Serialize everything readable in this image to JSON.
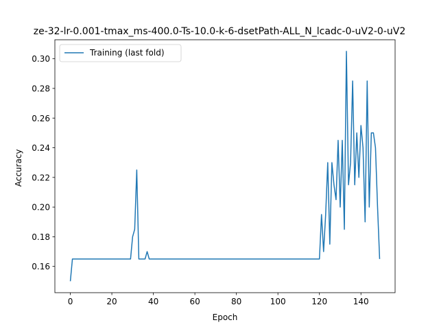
{
  "chart_data": {
    "type": "line",
    "title": "ze-32-lr-0.001-tmax_ms-400.0-Ts-10.0-k-6-dsetPath-ALL_N_lcadc-0-uV2-0-uV2",
    "xlabel": "Epoch",
    "ylabel": "Accuracy",
    "xlim": [
      -7.45,
      156.45
    ],
    "ylim": [
      0.1423,
      0.3128
    ],
    "xticks": [
      0,
      20,
      40,
      60,
      80,
      100,
      120,
      140
    ],
    "yticks": [
      0.16,
      0.18,
      0.2,
      0.22,
      0.24,
      0.26,
      0.28,
      0.3
    ],
    "ytick_labels": [
      "0.16",
      "0.18",
      "0.20",
      "0.22",
      "0.24",
      "0.26",
      "0.28",
      "0.30"
    ],
    "grid": false,
    "legend": {
      "position": "upper-left"
    },
    "series": [
      {
        "name": "Training (last fold)",
        "color": "#1f77b4",
        "x": [
          0,
          1,
          2,
          3,
          4,
          5,
          6,
          7,
          8,
          9,
          10,
          11,
          12,
          13,
          14,
          15,
          16,
          17,
          18,
          19,
          20,
          21,
          22,
          23,
          24,
          25,
          26,
          27,
          28,
          29,
          30,
          31,
          32,
          33,
          34,
          35,
          36,
          37,
          38,
          39,
          40,
          41,
          42,
          43,
          44,
          45,
          46,
          47,
          48,
          49,
          50,
          51,
          52,
          53,
          54,
          55,
          56,
          57,
          58,
          59,
          60,
          61,
          62,
          63,
          64,
          65,
          66,
          67,
          68,
          69,
          70,
          71,
          72,
          73,
          74,
          75,
          76,
          77,
          78,
          79,
          80,
          81,
          82,
          83,
          84,
          85,
          86,
          87,
          88,
          89,
          90,
          91,
          92,
          93,
          94,
          95,
          96,
          97,
          98,
          99,
          100,
          101,
          102,
          103,
          104,
          105,
          106,
          107,
          108,
          109,
          110,
          111,
          112,
          113,
          114,
          115,
          116,
          117,
          118,
          119,
          120,
          121,
          122,
          123,
          124,
          125,
          126,
          127,
          128,
          129,
          130,
          131,
          132,
          133,
          134,
          135,
          136,
          137,
          138,
          139,
          140,
          141,
          142,
          143,
          144,
          145,
          146,
          147,
          148,
          149
        ],
        "values": [
          0.15,
          0.165,
          0.165,
          0.165,
          0.165,
          0.165,
          0.165,
          0.165,
          0.165,
          0.165,
          0.165,
          0.165,
          0.165,
          0.165,
          0.165,
          0.165,
          0.165,
          0.165,
          0.165,
          0.165,
          0.165,
          0.165,
          0.165,
          0.165,
          0.165,
          0.165,
          0.165,
          0.165,
          0.165,
          0.165,
          0.18,
          0.185,
          0.225,
          0.165,
          0.165,
          0.165,
          0.165,
          0.17,
          0.165,
          0.165,
          0.165,
          0.165,
          0.165,
          0.165,
          0.165,
          0.165,
          0.165,
          0.165,
          0.165,
          0.165,
          0.165,
          0.165,
          0.165,
          0.165,
          0.165,
          0.165,
          0.165,
          0.165,
          0.165,
          0.165,
          0.165,
          0.165,
          0.165,
          0.165,
          0.165,
          0.165,
          0.165,
          0.165,
          0.165,
          0.165,
          0.165,
          0.165,
          0.165,
          0.165,
          0.165,
          0.165,
          0.165,
          0.165,
          0.165,
          0.165,
          0.165,
          0.165,
          0.165,
          0.165,
          0.165,
          0.165,
          0.165,
          0.165,
          0.165,
          0.165,
          0.165,
          0.165,
          0.165,
          0.165,
          0.165,
          0.165,
          0.165,
          0.165,
          0.165,
          0.165,
          0.165,
          0.165,
          0.165,
          0.165,
          0.165,
          0.165,
          0.165,
          0.165,
          0.165,
          0.165,
          0.165,
          0.165,
          0.165,
          0.165,
          0.165,
          0.165,
          0.165,
          0.165,
          0.165,
          0.165,
          0.165,
          0.195,
          0.17,
          0.195,
          0.23,
          0.175,
          0.23,
          0.215,
          0.205,
          0.245,
          0.2,
          0.245,
          0.185,
          0.305,
          0.215,
          0.23,
          0.285,
          0.215,
          0.25,
          0.22,
          0.255,
          0.24,
          0.19,
          0.285,
          0.2,
          0.25,
          0.25,
          0.24,
          0.2,
          0.165
        ]
      }
    ]
  }
}
